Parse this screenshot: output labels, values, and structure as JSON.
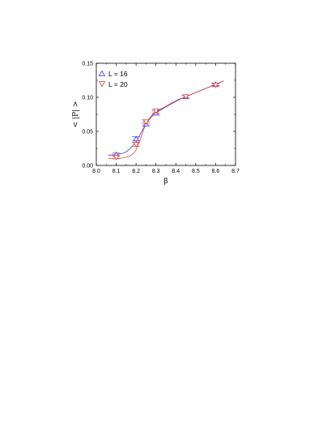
{
  "chart_data": {
    "type": "scatter",
    "xlabel": "β",
    "ylabel": "< |P| >",
    "xlim": [
      8.0,
      8.7
    ],
    "ylim": [
      0.0,
      0.15
    ],
    "xticks": [
      "8.0",
      "8.1",
      "8.2",
      "8.3",
      "8.4",
      "8.5",
      "8.6",
      "8.7"
    ],
    "yticks": [
      "0.00",
      "0.05",
      "0.10",
      "0.15"
    ],
    "grid": false,
    "legend_position": "top-left",
    "series": [
      {
        "name": "L = 16",
        "marker": "triangle-up",
        "color": "#3a3ad0",
        "x": [
          8.1,
          8.2,
          8.25,
          8.3,
          8.45,
          8.6
        ],
        "y": [
          0.016,
          0.039,
          0.061,
          0.077,
          0.101,
          0.119
        ],
        "err": [
          0.002,
          0.003,
          0.003,
          0.003,
          0.002,
          0.002
        ],
        "fit_x": [
          8.06,
          8.1,
          8.15,
          8.2,
          8.22,
          8.25,
          8.28,
          8.3,
          8.35,
          8.4,
          8.45,
          8.5,
          8.55,
          8.6,
          8.64
        ],
        "fit_y": [
          0.015,
          0.016,
          0.02,
          0.035,
          0.045,
          0.061,
          0.072,
          0.077,
          0.086,
          0.094,
          0.101,
          0.107,
          0.113,
          0.119,
          0.124
        ]
      },
      {
        "name": "L = 20",
        "marker": "triangle-down",
        "color": "#e8402a",
        "x": [
          8.1,
          8.2,
          8.25,
          8.3,
          8.45,
          8.6
        ],
        "y": [
          0.012,
          0.031,
          0.064,
          0.08,
          0.101,
          0.118
        ],
        "err": [
          0.002,
          0.003,
          0.003,
          0.003,
          0.002,
          0.002
        ],
        "fit_x": [
          8.06,
          8.1,
          8.15,
          8.18,
          8.2,
          8.22,
          8.24,
          8.26,
          8.28,
          8.3,
          8.35,
          8.4,
          8.45,
          8.5,
          8.55,
          8.6,
          8.64
        ],
        "fit_y": [
          0.01,
          0.01,
          0.012,
          0.016,
          0.023,
          0.037,
          0.054,
          0.066,
          0.074,
          0.079,
          0.087,
          0.095,
          0.101,
          0.107,
          0.113,
          0.119,
          0.124
        ]
      }
    ]
  }
}
